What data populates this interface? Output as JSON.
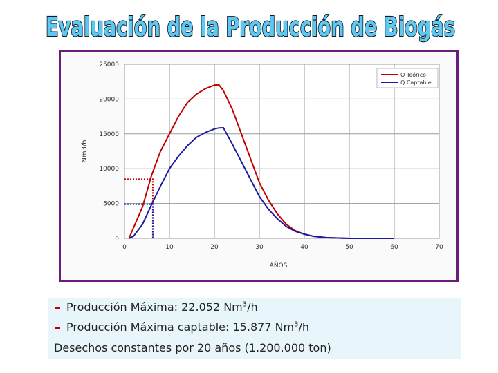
{
  "header": {
    "title": "Evaluación de la Producción de Biogás"
  },
  "chart_data": {
    "type": "line",
    "y_label": "Nm3/h",
    "x_label": "AÑOS",
    "x": [
      1,
      2,
      4,
      6,
      8,
      10,
      12,
      14,
      16,
      18,
      20,
      21,
      22,
      24,
      26,
      28,
      30,
      32,
      34,
      36,
      38,
      40,
      42,
      45,
      50,
      55,
      60
    ],
    "series": [
      {
        "name": "Q Teórico",
        "color": "#c00000",
        "values": [
          0,
          1500,
          4500,
          9000,
          12500,
          15000,
          17500,
          19500,
          20700,
          21500,
          22000,
          22052,
          21200,
          18500,
          15000,
          11500,
          8000,
          5500,
          3500,
          2000,
          1100,
          600,
          300,
          100,
          0,
          null,
          null
        ]
      },
      {
        "name": "Q Captable",
        "color": "#1a1aa0",
        "values": [
          0,
          300,
          2000,
          4800,
          7500,
          10000,
          11800,
          13300,
          14500,
          15200,
          15700,
          15850,
          15877,
          13500,
          11000,
          8500,
          6000,
          4200,
          2800,
          1700,
          1000,
          600,
          300,
          100,
          0,
          0,
          0
        ]
      }
    ],
    "xlim": [
      0,
      70
    ],
    "ylim": [
      0,
      25000
    ],
    "xticks": [
      0,
      10,
      20,
      30,
      40,
      50,
      60,
      70
    ],
    "yticks": [
      0,
      5000,
      10000,
      15000,
      20000,
      25000
    ],
    "grid": true,
    "legend": "upper-right",
    "guides": [
      {
        "x": 6.3,
        "y": 8500,
        "color": "#c00000"
      },
      {
        "x": 6.3,
        "y": 4900,
        "color": "#1a1aa0"
      }
    ]
  },
  "notes": {
    "lines": [
      [
        "Producción Máxima: 22.052 Nm",
        "3",
        "/h"
      ],
      [
        "Producción Máxima captable: 15.877 Nm",
        "3",
        "/h"
      ],
      [
        "Desechos constantes por 20 años (1.200.000 ton)"
      ]
    ]
  }
}
